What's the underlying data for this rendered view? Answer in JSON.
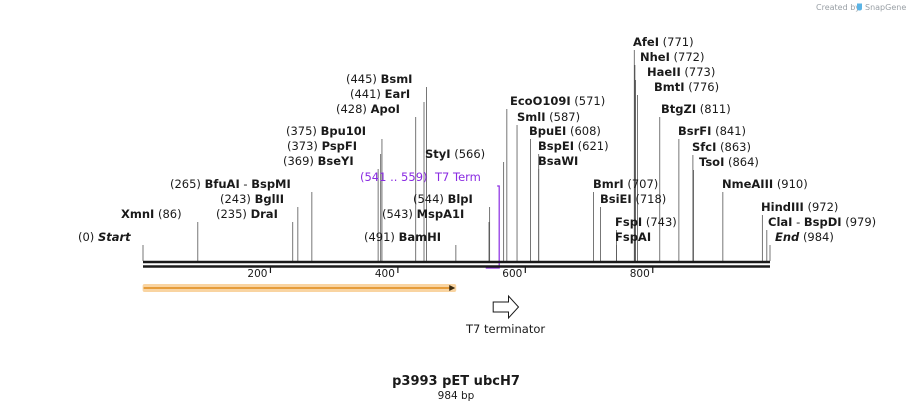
{
  "credit": {
    "text": "Created by",
    "brand": "SnapGene"
  },
  "plasmid": {
    "name": "p3993 pET ubcH7",
    "length_label": "984 bp",
    "length": 984
  },
  "sites": [
    {
      "name": "Start",
      "pos": "(0)",
      "bp": 0,
      "italic": true
    },
    {
      "name": "XmnI",
      "pos": "(86)",
      "bp": 86
    },
    {
      "name": "DraI",
      "pos": "(235)",
      "bp": 235
    },
    {
      "name": "BglII",
      "pos": "(243)",
      "bp": 243
    },
    {
      "name": "BfuAI",
      "sep": "-",
      "name2": "BspMI",
      "pos": "(265)",
      "bp": 265
    },
    {
      "name": "BseYI",
      "pos": "(369)",
      "bp": 369
    },
    {
      "name": "PspFI",
      "pos": "(373)",
      "bp": 373
    },
    {
      "name": "Bpu10I",
      "pos": "(375)",
      "bp": 375
    },
    {
      "name": "ApoI",
      "pos": "(428)",
      "bp": 428
    },
    {
      "name": "EarI",
      "pos": "(441)",
      "bp": 441
    },
    {
      "name": "BsmI",
      "pos": "(445)",
      "bp": 445
    },
    {
      "name": "BamHI",
      "pos": "(491)",
      "bp": 491
    },
    {
      "name": "MspA1I",
      "pos": "(543)",
      "bp": 543
    },
    {
      "name": "BlpI",
      "pos": "(544)",
      "bp": 544
    },
    {
      "name": "StyI",
      "pos": "(566)",
      "bp": 566
    },
    {
      "name": "EcoO109I",
      "pos": "(571)",
      "bp": 571
    },
    {
      "name": "SmlI",
      "pos": "(587)",
      "bp": 587
    },
    {
      "name": "BpuEI",
      "pos": "(608)",
      "bp": 608
    },
    {
      "name": "BspEI",
      "pos": "(621)",
      "bp": 621
    },
    {
      "name": "BsaWI",
      "pos": "",
      "bp": 621
    },
    {
      "name": "BmrI",
      "pos": "(707)",
      "bp": 707
    },
    {
      "name": "BsiEI",
      "pos": "(718)",
      "bp": 718
    },
    {
      "name": "FspI",
      "pos": "(743)",
      "bp": 743
    },
    {
      "name": "FspAI",
      "pos": "",
      "bp": 743
    },
    {
      "name": "AfeI",
      "pos": "(771)",
      "bp": 771
    },
    {
      "name": "NheI",
      "pos": "(772)",
      "bp": 772
    },
    {
      "name": "HaeII",
      "pos": "(773)",
      "bp": 773
    },
    {
      "name": "BmtI",
      "pos": "(776)",
      "bp": 776
    },
    {
      "name": "BtgZI",
      "pos": "(811)",
      "bp": 811
    },
    {
      "name": "BsrFI",
      "pos": "(841)",
      "bp": 841
    },
    {
      "name": "SfcI",
      "pos": "(863)",
      "bp": 863
    },
    {
      "name": "TsoI",
      "pos": "(864)",
      "bp": 864
    },
    {
      "name": "NmeAIII",
      "pos": "(910)",
      "bp": 910
    },
    {
      "name": "HindIII",
      "pos": "(972)",
      "bp": 972
    },
    {
      "name": "ClaI",
      "sep": "-",
      "name2": "BspDI",
      "pos": "(979)",
      "bp": 979
    },
    {
      "name": "End",
      "pos": "(984)",
      "bp": 984,
      "italic": true
    }
  ],
  "primer": {
    "range": "(541 .. 559)",
    "name": "T7 Term",
    "start": 541,
    "end": 559,
    "color": "#8a2be2"
  },
  "feature": {
    "name": "T7 terminator",
    "start": 559,
    "end": 605
  },
  "orf_bar": {
    "start": 1,
    "end": 490,
    "color": "#f2a23a"
  },
  "ticks": [
    {
      "bp": 200,
      "label": "200"
    },
    {
      "bp": 400,
      "label": "400"
    },
    {
      "bp": 600,
      "label": "600"
    },
    {
      "bp": 800,
      "label": "800"
    }
  ]
}
